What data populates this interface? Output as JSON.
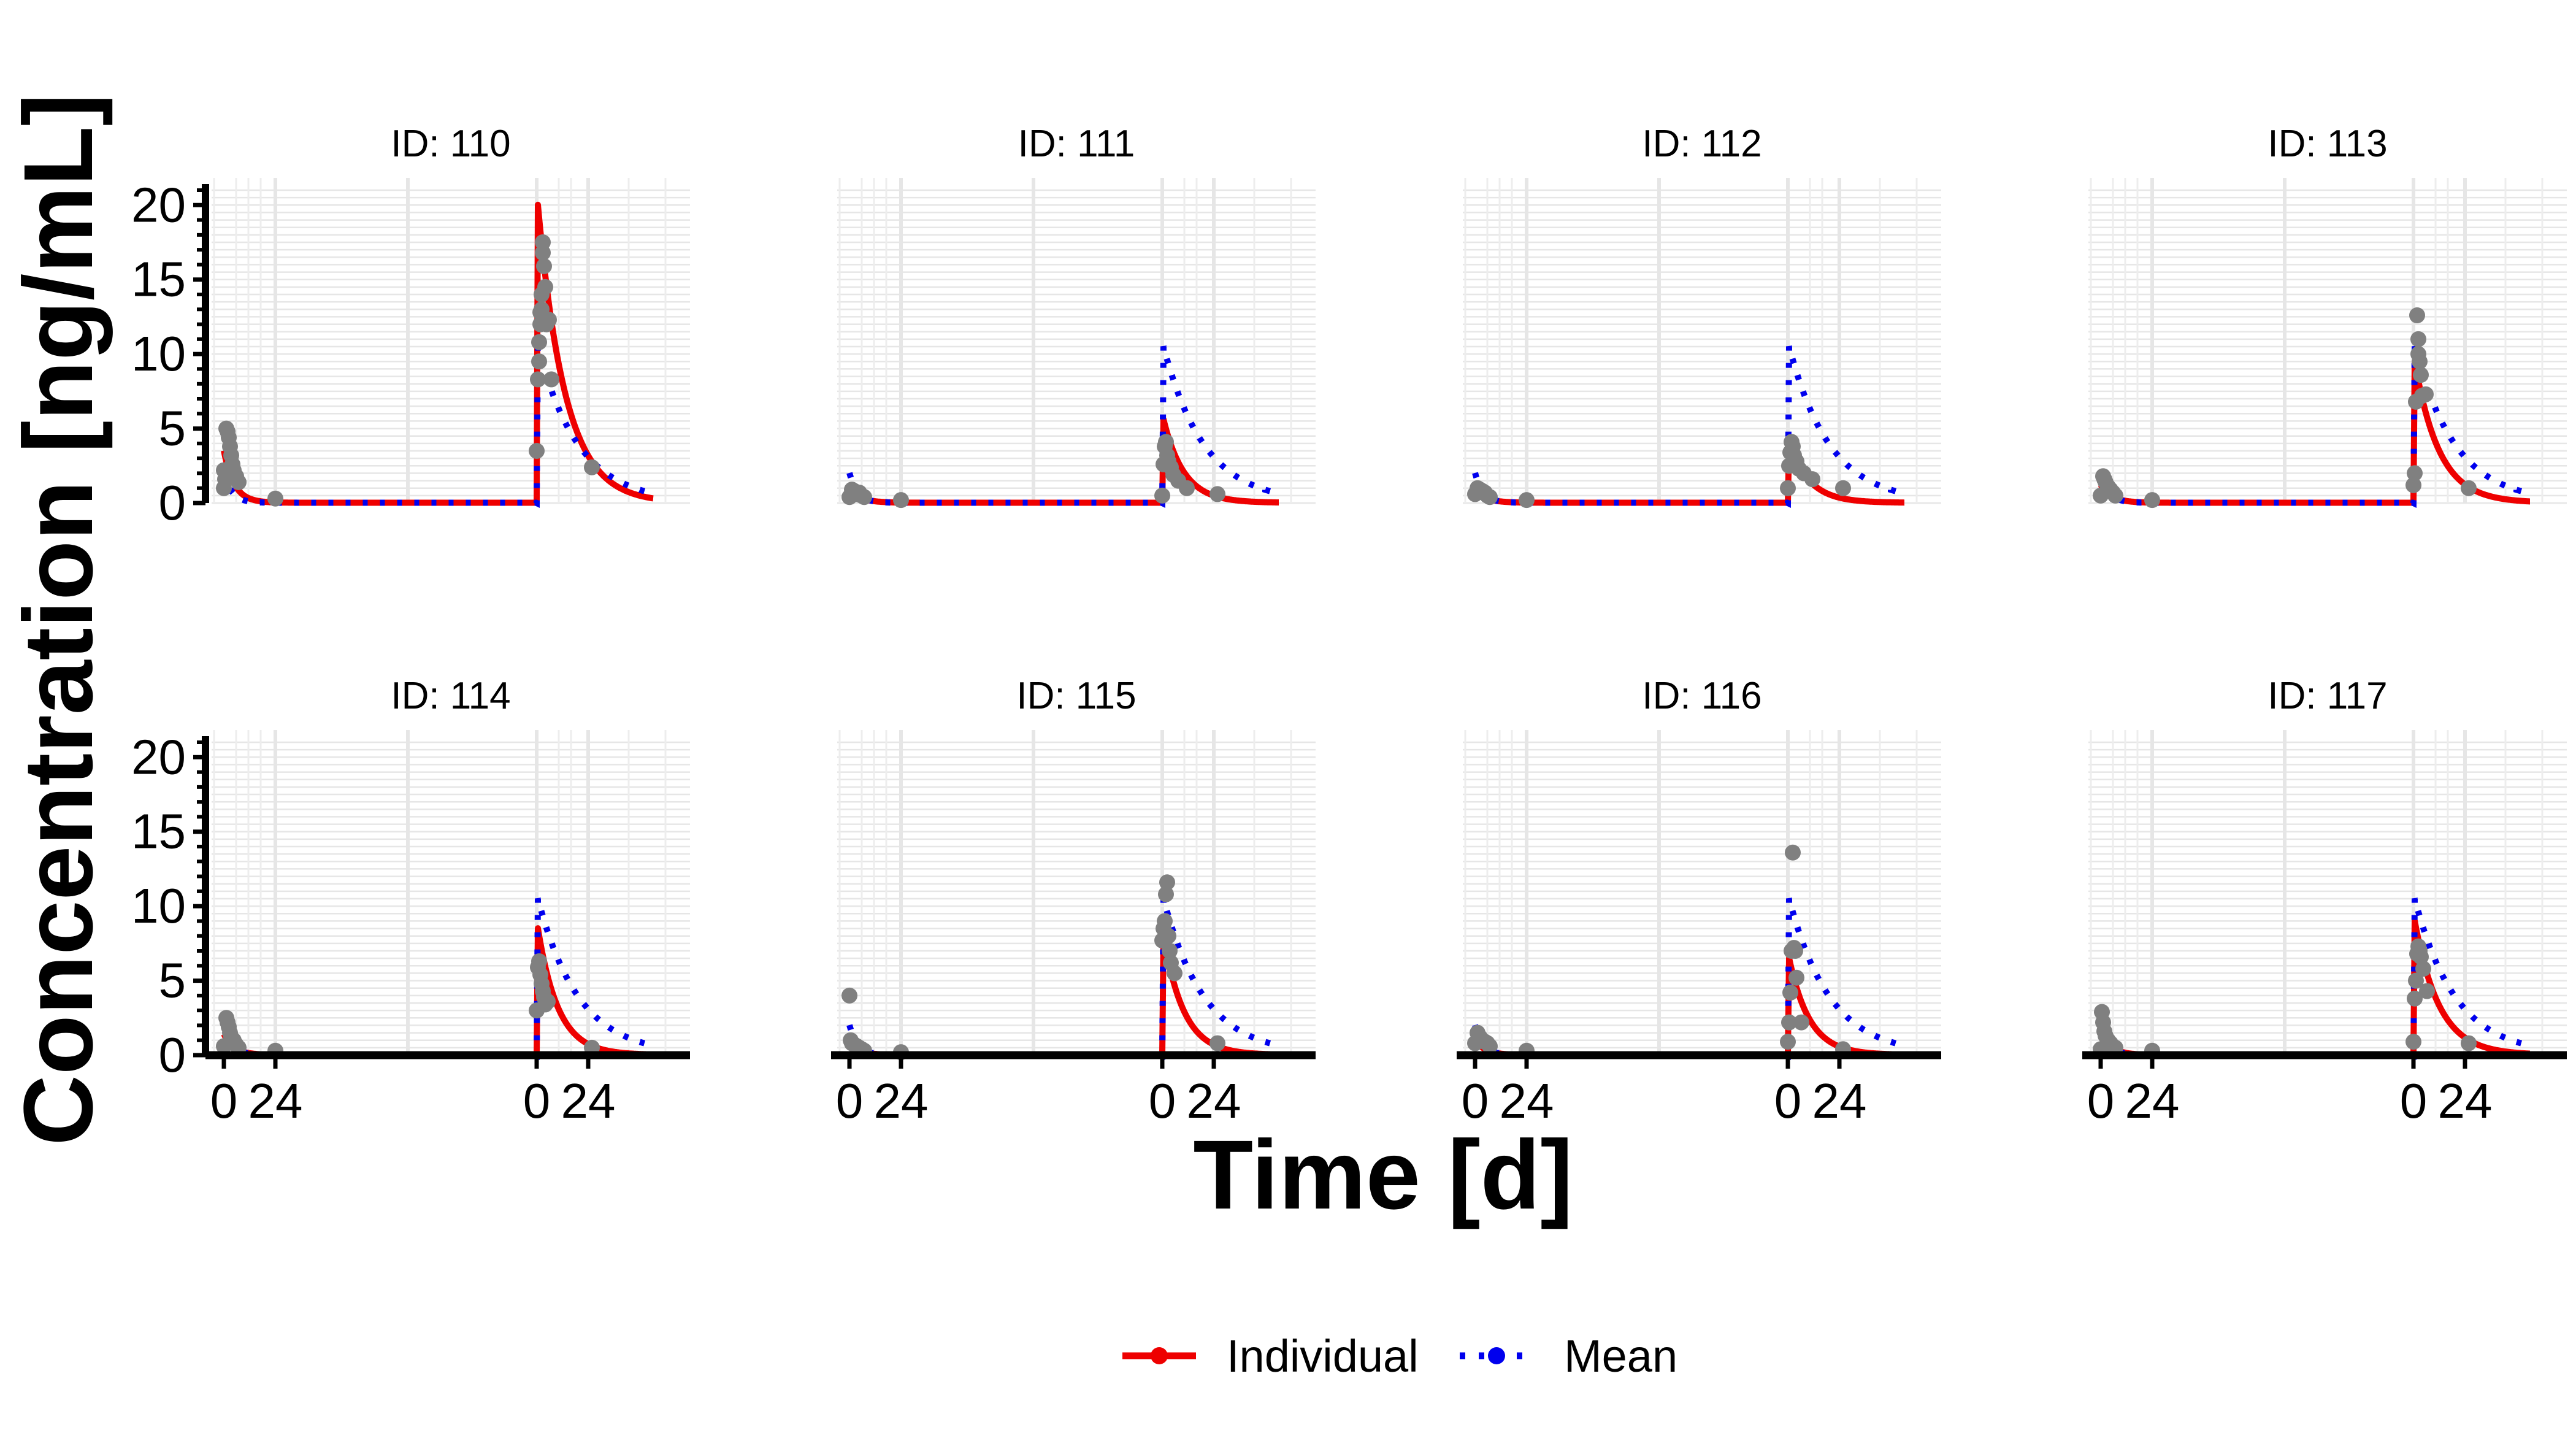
{
  "chart_data": {
    "type": "line",
    "xlabel": "Time [d]",
    "ylabel": "Concentration [ng/mL]",
    "ylim": [
      0,
      21
    ],
    "yticks": [
      0,
      5,
      10,
      15,
      20
    ],
    "xlim": [
      -10,
      380
    ],
    "xticks": [
      {
        "value": 0,
        "label": "0"
      },
      {
        "value": 42,
        "label": "24"
      },
      {
        "value": 255,
        "label": "0"
      },
      {
        "value": 297,
        "label": "24"
      }
    ],
    "grid": true,
    "legend": {
      "position": "bottom",
      "entries": [
        {
          "name": "Individual",
          "color": "#ee0000",
          "style": "solid"
        },
        {
          "name": "Mean",
          "color": "#0000ee",
          "style": "dotted"
        }
      ]
    },
    "panels": [
      {
        "label": "ID: 110",
        "individual": {
          "c0": 3.5,
          "k1": 0.12,
          "cpeak": 20.0,
          "k2": 0.045
        },
        "mean": {
          "c0": 2.0,
          "k1": 0.15,
          "cpeak": 10.5,
          "k2": 0.03
        },
        "obs": [
          [
            0,
            2.2
          ],
          [
            2,
            5.0
          ],
          [
            3,
            4.8
          ],
          [
            4,
            4.4
          ],
          [
            5,
            3.8
          ],
          [
            6,
            3.2
          ],
          [
            7,
            2.6
          ],
          [
            8,
            2.2
          ],
          [
            10,
            1.8
          ],
          [
            12,
            1.4
          ],
          [
            0,
            1.0
          ],
          [
            1,
            1.6
          ],
          [
            42,
            0.3
          ],
          [
            255,
            3.5
          ],
          [
            256,
            8.3
          ],
          [
            257,
            9.5
          ],
          [
            257,
            10.8
          ],
          [
            258,
            12.0
          ],
          [
            258,
            12.8
          ],
          [
            259,
            13.0
          ],
          [
            259,
            14.0
          ],
          [
            260,
            16.8
          ],
          [
            260,
            17.5
          ],
          [
            261,
            15.9
          ],
          [
            262,
            14.5
          ],
          [
            263,
            12.0
          ],
          [
            265,
            12.3
          ],
          [
            267,
            8.3
          ],
          [
            300,
            2.4
          ]
        ]
      },
      {
        "label": "ID: 111",
        "individual": {
          "c0": 0.8,
          "k1": 0.1,
          "cpeak": 5.6,
          "k2": 0.06
        },
        "mean": {
          "c0": 2.0,
          "k1": 0.15,
          "cpeak": 10.5,
          "k2": 0.03
        },
        "obs": [
          [
            0,
            0.4
          ],
          [
            2,
            0.9
          ],
          [
            4,
            0.8
          ],
          [
            6,
            0.6
          ],
          [
            8,
            0.7
          ],
          [
            10,
            0.5
          ],
          [
            12,
            0.4
          ],
          [
            42,
            0.2
          ],
          [
            255,
            0.5
          ],
          [
            256,
            2.6
          ],
          [
            257,
            3.8
          ],
          [
            258,
            4.1
          ],
          [
            259,
            3.2
          ],
          [
            260,
            2.8
          ],
          [
            262,
            2.4
          ],
          [
            264,
            1.9
          ],
          [
            268,
            1.5
          ],
          [
            275,
            1.0
          ],
          [
            300,
            0.6
          ]
        ]
      },
      {
        "label": "ID: 112",
        "individual": {
          "c0": 0.7,
          "k1": 0.1,
          "cpeak": 4.0,
          "k2": 0.06
        },
        "mean": {
          "c0": 2.0,
          "k1": 0.15,
          "cpeak": 10.5,
          "k2": 0.03
        },
        "obs": [
          [
            0,
            0.6
          ],
          [
            2,
            1.0
          ],
          [
            4,
            0.9
          ],
          [
            6,
            0.8
          ],
          [
            8,
            0.7
          ],
          [
            10,
            0.5
          ],
          [
            12,
            0.4
          ],
          [
            42,
            0.2
          ],
          [
            255,
            1.0
          ],
          [
            256,
            2.5
          ],
          [
            257,
            3.4
          ],
          [
            258,
            4.1
          ],
          [
            259,
            3.8
          ],
          [
            260,
            3.2
          ],
          [
            262,
            2.8
          ],
          [
            264,
            2.3
          ],
          [
            268,
            2.0
          ],
          [
            275,
            1.6
          ],
          [
            300,
            1.0
          ]
        ]
      },
      {
        "label": "ID: 113",
        "individual": {
          "c0": 1.2,
          "k1": 0.11,
          "cpeak": 9.5,
          "k2": 0.05
        },
        "mean": {
          "c0": 2.0,
          "k1": 0.15,
          "cpeak": 10.5,
          "k2": 0.03
        },
        "obs": [
          [
            0,
            0.5
          ],
          [
            2,
            1.8
          ],
          [
            3,
            1.6
          ],
          [
            4,
            1.4
          ],
          [
            6,
            1.1
          ],
          [
            8,
            0.9
          ],
          [
            10,
            0.7
          ],
          [
            12,
            0.5
          ],
          [
            42,
            0.2
          ],
          [
            255,
            1.2
          ],
          [
            256,
            2.0
          ],
          [
            257,
            6.8
          ],
          [
            258,
            12.6
          ],
          [
            259,
            11.0
          ],
          [
            259,
            10.0
          ],
          [
            260,
            9.5
          ],
          [
            261,
            8.6
          ],
          [
            262,
            7.2
          ],
          [
            265,
            7.3
          ],
          [
            300,
            1.0
          ]
        ]
      },
      {
        "label": "ID: 114",
        "individual": {
          "c0": 1.4,
          "k1": 0.12,
          "cpeak": 8.5,
          "k2": 0.06
        },
        "mean": {
          "c0": 2.0,
          "k1": 0.15,
          "cpeak": 10.5,
          "k2": 0.03
        },
        "obs": [
          [
            0,
            0.6
          ],
          [
            2,
            2.5
          ],
          [
            3,
            2.2
          ],
          [
            4,
            1.9
          ],
          [
            5,
            1.5
          ],
          [
            6,
            1.2
          ],
          [
            8,
            1.0
          ],
          [
            10,
            0.7
          ],
          [
            12,
            0.5
          ],
          [
            42,
            0.3
          ],
          [
            255,
            3.0
          ],
          [
            256,
            5.9
          ],
          [
            257,
            6.3
          ],
          [
            258,
            5.4
          ],
          [
            259,
            4.8
          ],
          [
            260,
            4.3
          ],
          [
            261,
            3.9
          ],
          [
            262,
            3.4
          ],
          [
            264,
            3.6
          ],
          [
            300,
            0.5
          ]
        ]
      },
      {
        "label": "ID: 115",
        "individual": {
          "c0": 0.8,
          "k1": 0.12,
          "cpeak": 8.0,
          "k2": 0.06
        },
        "mean": {
          "c0": 2.0,
          "k1": 0.15,
          "cpeak": 10.5,
          "k2": 0.03
        },
        "obs": [
          [
            0,
            4.0
          ],
          [
            1,
            1.0
          ],
          [
            2,
            0.8
          ],
          [
            4,
            0.7
          ],
          [
            6,
            0.6
          ],
          [
            8,
            0.5
          ],
          [
            10,
            0.4
          ],
          [
            12,
            0.3
          ],
          [
            42,
            0.2
          ],
          [
            255,
            7.7
          ],
          [
            256,
            8.5
          ],
          [
            257,
            9.0
          ],
          [
            258,
            10.8
          ],
          [
            259,
            11.6
          ],
          [
            260,
            8.0
          ],
          [
            261,
            7.0
          ],
          [
            262,
            6.2
          ],
          [
            265,
            5.5
          ],
          [
            300,
            0.8
          ]
        ]
      },
      {
        "label": "ID: 116",
        "individual": {
          "c0": 1.0,
          "k1": 0.12,
          "cpeak": 6.5,
          "k2": 0.06
        },
        "mean": {
          "c0": 2.0,
          "k1": 0.15,
          "cpeak": 10.5,
          "k2": 0.03
        },
        "obs": [
          [
            0,
            0.8
          ],
          [
            2,
            1.5
          ],
          [
            3,
            1.3
          ],
          [
            4,
            1.2
          ],
          [
            6,
            1.0
          ],
          [
            8,
            0.9
          ],
          [
            10,
            0.8
          ],
          [
            12,
            0.6
          ],
          [
            42,
            0.3
          ],
          [
            255,
            0.9
          ],
          [
            256,
            2.2
          ],
          [
            257,
            4.2
          ],
          [
            258,
            7.0
          ],
          [
            259,
            13.6
          ],
          [
            260,
            7.2
          ],
          [
            261,
            7.0
          ],
          [
            262,
            5.2
          ],
          [
            266,
            2.2
          ],
          [
            300,
            0.4
          ]
        ]
      },
      {
        "label": "ID: 117",
        "individual": {
          "c0": 1.6,
          "k1": 0.12,
          "cpeak": 9.0,
          "k2": 0.05
        },
        "mean": {
          "c0": 2.0,
          "k1": 0.15,
          "cpeak": 10.5,
          "k2": 0.03
        },
        "obs": [
          [
            0,
            0.4
          ],
          [
            1,
            2.9
          ],
          [
            2,
            2.2
          ],
          [
            3,
            1.6
          ],
          [
            4,
            1.3
          ],
          [
            6,
            1.0
          ],
          [
            8,
            0.8
          ],
          [
            10,
            0.6
          ],
          [
            12,
            0.5
          ],
          [
            42,
            0.3
          ],
          [
            255,
            0.9
          ],
          [
            256,
            3.8
          ],
          [
            257,
            5.0
          ],
          [
            258,
            6.8
          ],
          [
            259,
            7.3
          ],
          [
            260,
            7.0
          ],
          [
            261,
            6.6
          ],
          [
            263,
            5.8
          ],
          [
            266,
            4.3
          ],
          [
            300,
            0.8
          ]
        ]
      }
    ]
  }
}
